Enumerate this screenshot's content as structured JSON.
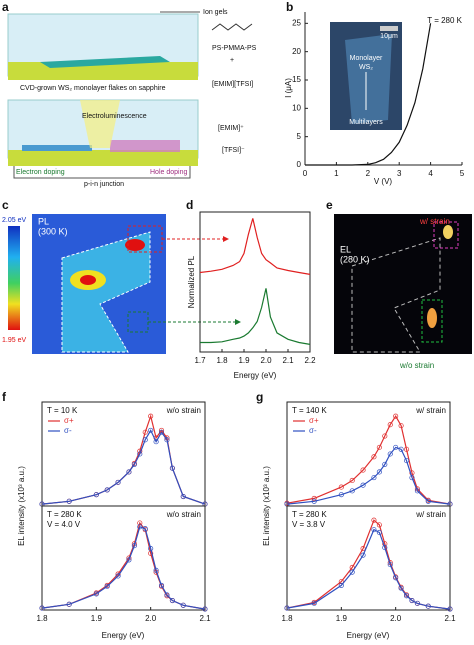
{
  "panel_labels": [
    "a",
    "b",
    "c",
    "d",
    "e",
    "f",
    "g"
  ],
  "schematic": {
    "ion_gels": "Ion gels",
    "polymer": "PS-PMMA-PS",
    "plus": "+",
    "ionic_liquid": "[EMIM][TFSI]",
    "flakes": "CVD-grown WS₂ monolayer flakes on sapphire",
    "cation": "[EMIM]⁺",
    "anion": "[TFSI]⁻",
    "electroluminescence": "Electroluminescence",
    "electron_doping": "Electron doping",
    "junction": "p-i-n junction",
    "hole_doping": "Hole doping"
  },
  "inset": {
    "monolayer": "Monolayer",
    "monolayer_material": "WS₂",
    "scale": "10μm",
    "multilayers": "Multilayers"
  },
  "pl_map": {
    "title": "PL",
    "temperature": "(300 K)",
    "cbar_max": "2.05 eV",
    "cbar_min": "1.95 eV"
  },
  "el_image": {
    "title": "EL",
    "temperature": "(280 K)",
    "with_strain": "w/ strain",
    "without_strain": "w/o strain"
  },
  "chart_data": [
    {
      "type": "line",
      "xlabel": "V (V)",
      "ylabel": "I (μA)",
      "note": "T = 280 K",
      "x": [
        0,
        0.5,
        1,
        1.5,
        2,
        2.25,
        2.5,
        2.75,
        3,
        3.25,
        3.5,
        3.75,
        4
      ],
      "values": [
        0,
        0,
        0,
        0,
        0.1,
        0.4,
        1,
        2.2,
        4,
        7,
        11,
        17,
        25
      ],
      "color": "#111111",
      "xlim": [
        0,
        5
      ],
      "ylim": [
        0,
        27
      ],
      "xticks": [
        0,
        1,
        2,
        3,
        4,
        5
      ],
      "yticks": [
        0,
        5,
        10,
        15,
        20,
        25
      ]
    },
    {
      "type": "line",
      "ylabel": "Normalized PL",
      "x": [
        1.7,
        1.75,
        1.8,
        1.85,
        1.88,
        1.9,
        1.92,
        1.94,
        1.96,
        1.98,
        2.0,
        2.02,
        2.05,
        2.1,
        2.15,
        2.2
      ],
      "values": [
        0.15,
        0.17,
        0.2,
        0.26,
        0.32,
        0.45,
        0.75,
        1.0,
        0.7,
        0.45,
        0.35,
        0.3,
        0.22,
        0.18,
        0.15,
        0.12
      ],
      "color": "#e02020",
      "xlim": [
        1.7,
        2.2
      ],
      "ylim": [
        0,
        1.1
      ]
    },
    {
      "type": "line",
      "xlabel": "Energy (eV)",
      "x": [
        1.7,
        1.75,
        1.8,
        1.85,
        1.88,
        1.9,
        1.92,
        1.94,
        1.96,
        1.98,
        2.0,
        2.02,
        2.05,
        2.1,
        2.15,
        2.2
      ],
      "values": [
        0.15,
        0.15,
        0.16,
        0.2,
        0.22,
        0.25,
        0.3,
        0.38,
        0.48,
        0.7,
        1.0,
        0.55,
        0.3,
        0.2,
        0.15,
        0.12
      ],
      "color": "#1a7a30",
      "xlim": [
        1.7,
        2.2
      ],
      "ylim": [
        0,
        1.1
      ],
      "xticks": [
        1.7,
        1.8,
        1.9,
        {
          "value": 2,
          "label": "2.0"
        },
        2.1,
        2.2
      ]
    },
    {
      "type": "line",
      "markers": true,
      "annotations": [
        "T = 10 K"
      ],
      "note": "w/o strain",
      "x": [
        1.8,
        1.85,
        1.9,
        1.92,
        1.94,
        1.96,
        1.97,
        1.98,
        1.99,
        2.0,
        2.01,
        2.02,
        2.03,
        2.04,
        2.06,
        2.1
      ],
      "series": [
        {
          "name": "σ+",
          "color": "#e03030",
          "values": [
            0.02,
            0.05,
            0.12,
            0.17,
            0.25,
            0.36,
            0.45,
            0.58,
            0.78,
            0.95,
            0.72,
            0.8,
            0.72,
            0.4,
            0.1,
            0.02
          ]
        },
        {
          "name": "σ-",
          "color": "#3050c0",
          "values": [
            0.02,
            0.05,
            0.12,
            0.17,
            0.25,
            0.36,
            0.44,
            0.55,
            0.7,
            0.8,
            0.68,
            0.78,
            0.7,
            0.4,
            0.1,
            0.02
          ]
        }
      ],
      "xlim": [
        1.8,
        2.1
      ],
      "ylim": [
        0,
        1.1
      ]
    },
    {
      "type": "line",
      "markers": true,
      "annotations": [
        "T = 280 K",
        "V = 4.0 V"
      ],
      "note": "w/o strain",
      "xlabel": "Energy (eV)",
      "ylabel": "EL intensity (x10³ a.u.)",
      "x": [
        1.8,
        1.85,
        1.9,
        1.92,
        1.94,
        1.96,
        1.97,
        1.98,
        1.99,
        2.0,
        2.01,
        2.02,
        2.03,
        2.04,
        2.06,
        2.1
      ],
      "series": [
        {
          "color": "#e03030",
          "values": [
            0.02,
            0.06,
            0.18,
            0.26,
            0.38,
            0.55,
            0.7,
            0.92,
            0.85,
            0.6,
            0.4,
            0.25,
            0.15,
            0.1,
            0.05,
            0.01
          ]
        },
        {
          "color": "#3050c0",
          "values": [
            0.02,
            0.06,
            0.17,
            0.25,
            0.36,
            0.53,
            0.68,
            0.88,
            0.86,
            0.65,
            0.42,
            0.26,
            0.16,
            0.1,
            0.05,
            0.01
          ]
        }
      ],
      "xlim": [
        1.8,
        2.1
      ],
      "ylim": [
        0,
        1.1
      ],
      "xticks": [
        1.8,
        1.9,
        {
          "value": 2,
          "label": "2.0"
        },
        2.1
      ]
    },
    {
      "type": "line",
      "markers": true,
      "annotations": [
        "T = 140 K"
      ],
      "note": "w/ strain",
      "x": [
        1.8,
        1.85,
        1.9,
        1.92,
        1.94,
        1.96,
        1.97,
        1.98,
        1.99,
        2.0,
        2.01,
        2.02,
        2.03,
        2.04,
        2.06,
        2.1
      ],
      "series": [
        {
          "name": "σ+",
          "color": "#e03030",
          "values": [
            0.03,
            0.08,
            0.2,
            0.27,
            0.38,
            0.52,
            0.62,
            0.74,
            0.86,
            0.95,
            0.85,
            0.6,
            0.35,
            0.18,
            0.06,
            0.02
          ]
        },
        {
          "name": "σ-",
          "color": "#3050c0",
          "values": [
            0.02,
            0.05,
            0.12,
            0.16,
            0.22,
            0.3,
            0.36,
            0.44,
            0.55,
            0.62,
            0.6,
            0.48,
            0.3,
            0.16,
            0.05,
            0.02
          ]
        }
      ],
      "xlim": [
        1.8,
        2.1
      ],
      "ylim": [
        0,
        1.1
      ]
    },
    {
      "type": "line",
      "markers": true,
      "annotations": [
        "T = 280 K",
        "V = 3.8 V"
      ],
      "note": "w/ strain",
      "xlabel": "Energy (eV)",
      "ylabel": "EL intensity (x10³ a.u.)",
      "x": [
        1.8,
        1.85,
        1.9,
        1.92,
        1.94,
        1.96,
        1.97,
        1.98,
        1.99,
        2.0,
        2.01,
        2.02,
        2.03,
        2.04,
        2.06,
        2.1
      ],
      "series": [
        {
          "color": "#e03030",
          "values": [
            0.02,
            0.08,
            0.3,
            0.45,
            0.65,
            0.95,
            0.9,
            0.7,
            0.5,
            0.35,
            0.24,
            0.16,
            0.1,
            0.07,
            0.04,
            0.01
          ]
        },
        {
          "color": "#3050c0",
          "values": [
            0.02,
            0.07,
            0.26,
            0.4,
            0.58,
            0.85,
            0.82,
            0.66,
            0.48,
            0.34,
            0.23,
            0.15,
            0.1,
            0.07,
            0.04,
            0.01
          ]
        }
      ],
      "xlim": [
        1.8,
        2.1
      ],
      "ylim": [
        0,
        1.1
      ],
      "xticks": [
        1.8,
        1.9,
        {
          "value": 2,
          "label": "2.0"
        },
        2.1
      ]
    }
  ]
}
